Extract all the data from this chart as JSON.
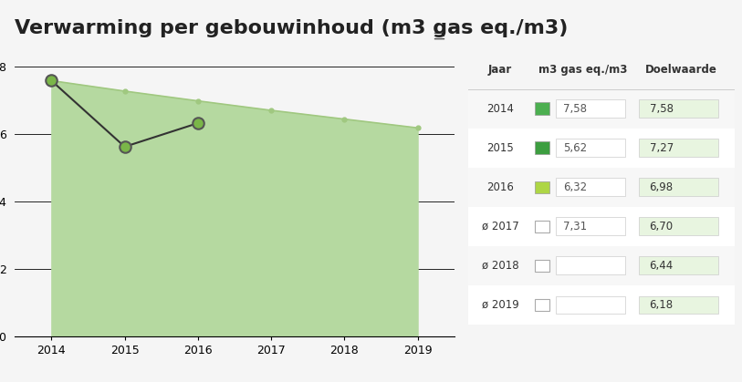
{
  "title": "Verwarming per gebouwinhoud (m3 gas eq./m3)",
  "ylabel": "m3 gas eq./m3",
  "years": [
    2014,
    2015,
    2016,
    2017,
    2018,
    2019
  ],
  "actual_values": [
    7.58,
    5.62,
    6.32,
    null,
    null,
    null
  ],
  "target_values": [
    7.58,
    7.27,
    6.98,
    6.7,
    6.44,
    6.18
  ],
  "ylim": [
    0,
    8.5
  ],
  "yticks": [
    0,
    2,
    4,
    6,
    8
  ],
  "bg_color": "#f5f5f5",
  "fill_color": "#b5d9a0",
  "line_color": "#333333",
  "target_line_color": "#a0c880",
  "marker_actual_color": "#7ab648",
  "marker_actual_edge": "#555555",
  "doelwaarde_bg": "#e8f5e0",
  "table_years": [
    "2014",
    "2015",
    "2016",
    "2017",
    "2018",
    "2019"
  ],
  "table_actual": [
    "7,58",
    "5,62",
    "6,32",
    "7,31",
    "",
    ""
  ],
  "table_target": [
    "7,58",
    "7,27",
    "6,98",
    "6,70",
    "6,44",
    "6,18"
  ],
  "table_colors": [
    "#4caf50",
    "#3d9e40",
    "#aed645",
    null,
    null,
    null
  ],
  "title_fontsize": 16,
  "axis_fontsize": 9,
  "table_fontsize": 8.5
}
